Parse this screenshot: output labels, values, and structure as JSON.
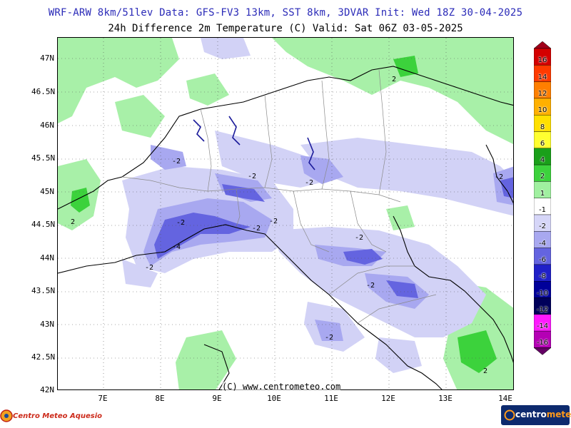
{
  "header": {
    "title_line1": "WRF-ARW 8km/51lev  Data: GFS-FV3 13km, SST 8km, 3DVAR  Init: Wed 18Z 30-04-2025",
    "title_line2": "24h Difference 2m Temperature (C)  Valid: Sat 06Z 03-05-2025"
  },
  "axes": {
    "lat_labels": [
      "47N",
      "46.5N",
      "46N",
      "45.5N",
      "45N",
      "44.5N",
      "44N",
      "43.5N",
      "43N",
      "42.5N",
      "42N"
    ],
    "lon_labels": [
      "7E",
      "8E",
      "9E",
      "10E",
      "11E",
      "12E",
      "13E",
      "14E"
    ]
  },
  "colorbar": {
    "labels": [
      "16",
      "14",
      "12",
      "10",
      "8",
      "6",
      "4",
      "2",
      "1",
      "-1",
      "-2",
      "-4",
      "-6",
      "-8",
      "-10",
      "-12",
      "-14",
      "-16"
    ],
    "colors": [
      "#a0001a",
      "#d40000",
      "#ff3a00",
      "#ff7f00",
      "#ffb000",
      "#ffe000",
      "#ffff30",
      "#1aa01a",
      "#3cd23c",
      "#a0f0a0",
      "#ffffff",
      "#d6d6f8",
      "#a8a8f0",
      "#6464e0",
      "#2020c8",
      "#00009a",
      "#00005a",
      "#ff19ff",
      "#b400b4",
      "#640064"
    ]
  },
  "contour_labels": [
    "-2",
    "-2",
    "-2",
    "-2",
    "-2",
    "-2",
    "-2",
    "-4",
    "-2",
    "-2",
    "-2",
    "-2",
    "2",
    "2",
    "2"
  ],
  "copyright": "(C) www.centrometeo.com",
  "logos": {
    "left_text": "Centro Meteo Aquesio",
    "right_text_a": "centro",
    "right_text_b": "meteo"
  }
}
